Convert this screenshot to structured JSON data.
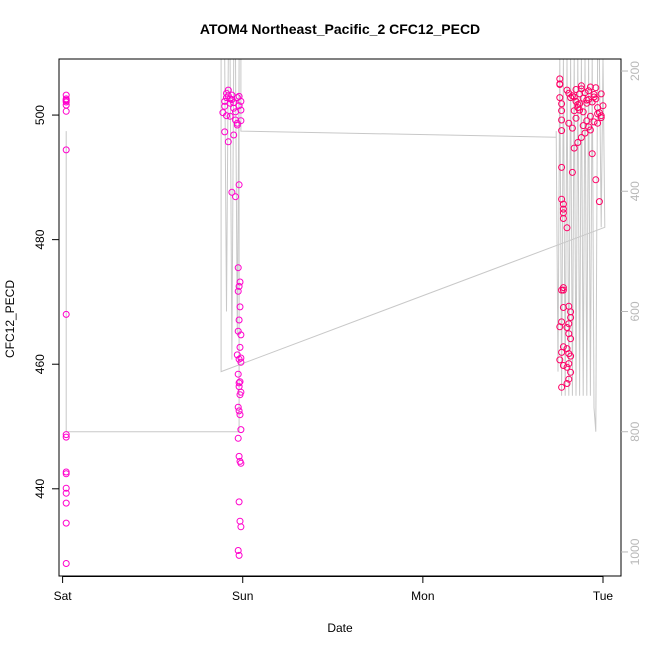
{
  "chart_data": {
    "type": "scatter",
    "title": "ATOM4 Northeast_Pacific_2 CFC12_PECD",
    "xlabel": "Date",
    "ylabel": "CFC12_PECD",
    "x_ticks": [
      "Sat",
      "Sun",
      "Mon",
      "Tue"
    ],
    "xlim": [
      -0.02,
      3.1
    ],
    "ylim": [
      426,
      509
    ],
    "y_ticks": [
      440,
      460,
      480,
      500
    ],
    "right_axis": {
      "label": "",
      "reversed": true,
      "ticks": [
        200,
        400,
        600,
        800,
        1000
      ],
      "range": [
        180,
        1040
      ]
    },
    "colors": {
      "points": "#ff00cc",
      "points_dense": "#ff0066",
      "depth_line": "#c8c8c8",
      "frame": "#000000",
      "right_axis": "#b8b8b8"
    },
    "series": [
      {
        "kind": "points",
        "x": [
          0.02,
          0.02,
          0.02,
          0.02,
          0.02,
          0.02,
          0.02,
          0.02,
          0.02,
          0.02,
          0.02,
          0.02,
          0.02,
          0.02,
          0.02,
          0.02,
          0.02,
          0.02,
          0.89,
          0.9,
          0.9,
          0.91,
          0.91,
          0.92,
          0.92,
          0.93,
          0.93,
          0.94,
          0.94,
          0.95,
          0.95,
          0.96,
          0.96,
          0.97,
          0.97,
          0.98,
          0.98,
          0.99,
          0.99,
          0.9,
          0.92,
          0.94,
          0.96,
          0.98,
          0.93,
          0.95,
          0.97,
          0.91,
          0.99,
          0.975,
          0.985,
          0.98,
          0.975,
          0.985,
          0.98,
          0.975,
          0.99,
          0.985,
          0.97,
          0.98,
          0.99,
          0.975,
          0.985,
          0.98,
          0.99,
          0.975,
          0.98,
          0.985,
          0.99,
          0.975,
          0.98,
          0.985,
          0.99,
          0.98,
          0.985,
          0.99,
          0.975,
          0.98,
          0.985,
          0.99,
          0.98
        ],
        "y": [
          428,
          434.5,
          437.7,
          439.3,
          440.1,
          442.4,
          442.7,
          448.3,
          448.7,
          468,
          494.4,
          500.6,
          501.6,
          502.1,
          502.3,
          502.4,
          502.6,
          503.2,
          500.4,
          501.4,
          502.2,
          502.8,
          503.5,
          504,
          503.1,
          502.6,
          501.9,
          502.5,
          503.2,
          502,
          501.1,
          500.5,
          499.2,
          498.4,
          502.8,
          501.5,
          503,
          502.2,
          500.8,
          497.3,
          495.7,
          487.6,
          486.9,
          488.8,
          499.8,
          496.8,
          498.7,
          499.9,
          499.1,
          475.5,
          473.2,
          472.5,
          471.7,
          469.2,
          467.1,
          465.3,
          464.7,
          462.7,
          461.5,
          460.8,
          460.3,
          458.4,
          457.2,
          456.4,
          455.5,
          453.1,
          452.5,
          451.9,
          449.5,
          448.1,
          445.2,
          444.4,
          444.1,
          437.9,
          434.8,
          433.9,
          430.1,
          429.3,
          455.1,
          461.0,
          457.0
        ]
      },
      {
        "kind": "points",
        "x": [
          2.76,
          2.76,
          2.76,
          2.76,
          2.77,
          2.77,
          2.77,
          2.77,
          2.77,
          2.77,
          2.78,
          2.78,
          2.78,
          2.78,
          2.78,
          2.78,
          2.8,
          2.81,
          2.82,
          2.83,
          2.84,
          2.85,
          2.86,
          2.87,
          2.88,
          2.89,
          2.9,
          2.91,
          2.92,
          2.93,
          2.94,
          2.95,
          2.96,
          2.97,
          2.98,
          2.99,
          3.0,
          2.81,
          2.83,
          2.85,
          2.87,
          2.89,
          2.91,
          2.93,
          2.95,
          2.97,
          2.99,
          2.8,
          2.81,
          2.82,
          2.82,
          2.81,
          2.8,
          2.81,
          2.82,
          2.8,
          2.81,
          2.82,
          2.81,
          2.8,
          2.82,
          2.81,
          2.8,
          2.77,
          2.78,
          2.77,
          2.76,
          2.78,
          2.77,
          2.76,
          2.78,
          2.77,
          2.83,
          2.84,
          2.86,
          2.88,
          2.9,
          2.92,
          2.94,
          2.96,
          2.98,
          2.84,
          2.87,
          2.91,
          2.95,
          2.99,
          2.86,
          2.89,
          2.93,
          2.97,
          2.85,
          2.88,
          2.92,
          2.96
        ],
        "y": [
          505.8,
          505,
          504.9,
          502.8,
          501.8,
          500.7,
          499.2,
          497.5,
          491.6,
          486.5,
          485.7,
          484.9,
          484.3,
          483.4,
          472.3,
          471.9,
          504,
          503.5,
          502.8,
          503.1,
          502.9,
          502.2,
          501.7,
          503.4,
          504.2,
          502.7,
          503.6,
          501.9,
          502.5,
          504.5,
          502.1,
          503.3,
          502.6,
          501.2,
          500.4,
          499.9,
          501.5,
          498.7,
          497.9,
          499.5,
          500.8,
          498.3,
          499.1,
          497.6,
          498.9,
          500.2,
          499.6,
          481.9,
          469.3,
          468.4,
          467.5,
          466.5,
          465.9,
          464.9,
          464.1,
          462.5,
          461.7,
          461.3,
          460.1,
          459.5,
          458.7,
          457.6,
          456.9,
          471.9,
          469.1,
          466.8,
          466,
          462.8,
          461.9,
          460.7,
          459.8,
          456.3,
          490.8,
          494.7,
          495.6,
          496.4,
          497.1,
          498.1,
          493.8,
          489.6,
          486.1,
          500.7,
          501.8,
          502.4,
          502.9,
          503.4,
          501.2,
          500.5,
          499.8,
          498.7,
          504.1,
          504.7,
          503.9,
          504.4
        ]
      },
      {
        "kind": "line",
        "name": "depth",
        "x": [
          0.02,
          0.02,
          0.02,
          0.98,
          0.98,
          0.99,
          0.99,
          2.74,
          2.74,
          2.75,
          2.76,
          2.77,
          2.78,
          2.79,
          2.8,
          2.81,
          2.82,
          2.83,
          2.84,
          2.85,
          2.86,
          2.87,
          2.88,
          2.89,
          2.9,
          2.91,
          2.92,
          2.93,
          2.94,
          2.95,
          2.96,
          2.97,
          2.98,
          2.99,
          3.0,
          3.01,
          0.88,
          0.88,
          0.9,
          0.91,
          0.92,
          0.93,
          0.94,
          0.95,
          0.96,
          0.97,
          0.98
        ],
        "y": [
          300,
          800,
          800,
          800,
          180,
          180,
          300,
          310,
          300,
          700,
          180,
          740,
          180,
          740,
          180,
          740,
          180,
          740,
          180,
          740,
          180,
          740,
          180,
          740,
          180,
          740,
          180,
          740,
          180,
          760,
          800,
          180,
          180,
          460,
          180,
          460,
          700,
          180,
          180,
          600,
          180,
          180,
          680,
          180,
          180,
          640,
          180
        ]
      }
    ]
  }
}
